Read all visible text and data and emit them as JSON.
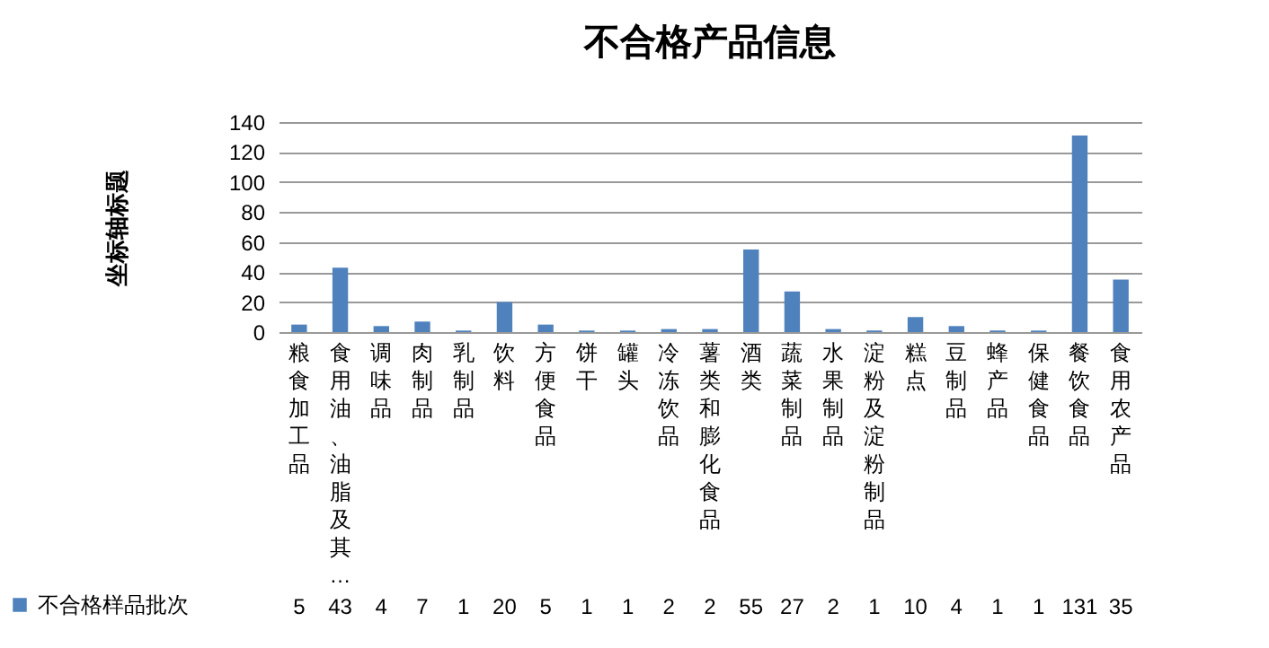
{
  "chart_data": {
    "type": "bar",
    "title": "不合格产品信息",
    "ylabel": "坐标轴标题",
    "categories": [
      "粮食加工品",
      "食用油、油脂及其…",
      "调味品",
      "肉制品",
      "乳制品",
      "饮料",
      "方便食品",
      "饼干",
      "罐头",
      "冷冻饮品",
      "薯类和膨化食品",
      "酒类",
      "蔬菜制品",
      "水果制品",
      "淀粉及淀粉制品",
      "糕点",
      "豆制品",
      "蜂产品",
      "保健食品",
      "餐饮食品",
      "食用农产品"
    ],
    "series": [
      {
        "name": "不合格样品批次",
        "color": "#4f81bd",
        "values": [
          5,
          43,
          4,
          7,
          1,
          20,
          5,
          1,
          1,
          2,
          2,
          55,
          27,
          2,
          1,
          10,
          4,
          1,
          1,
          131,
          35
        ]
      }
    ],
    "ylim": [
      0,
      140
    ],
    "yticks": [
      0,
      20,
      40,
      60,
      80,
      100,
      120,
      140
    ],
    "grid": true,
    "legend": "bottom left",
    "data_labels": true
  }
}
